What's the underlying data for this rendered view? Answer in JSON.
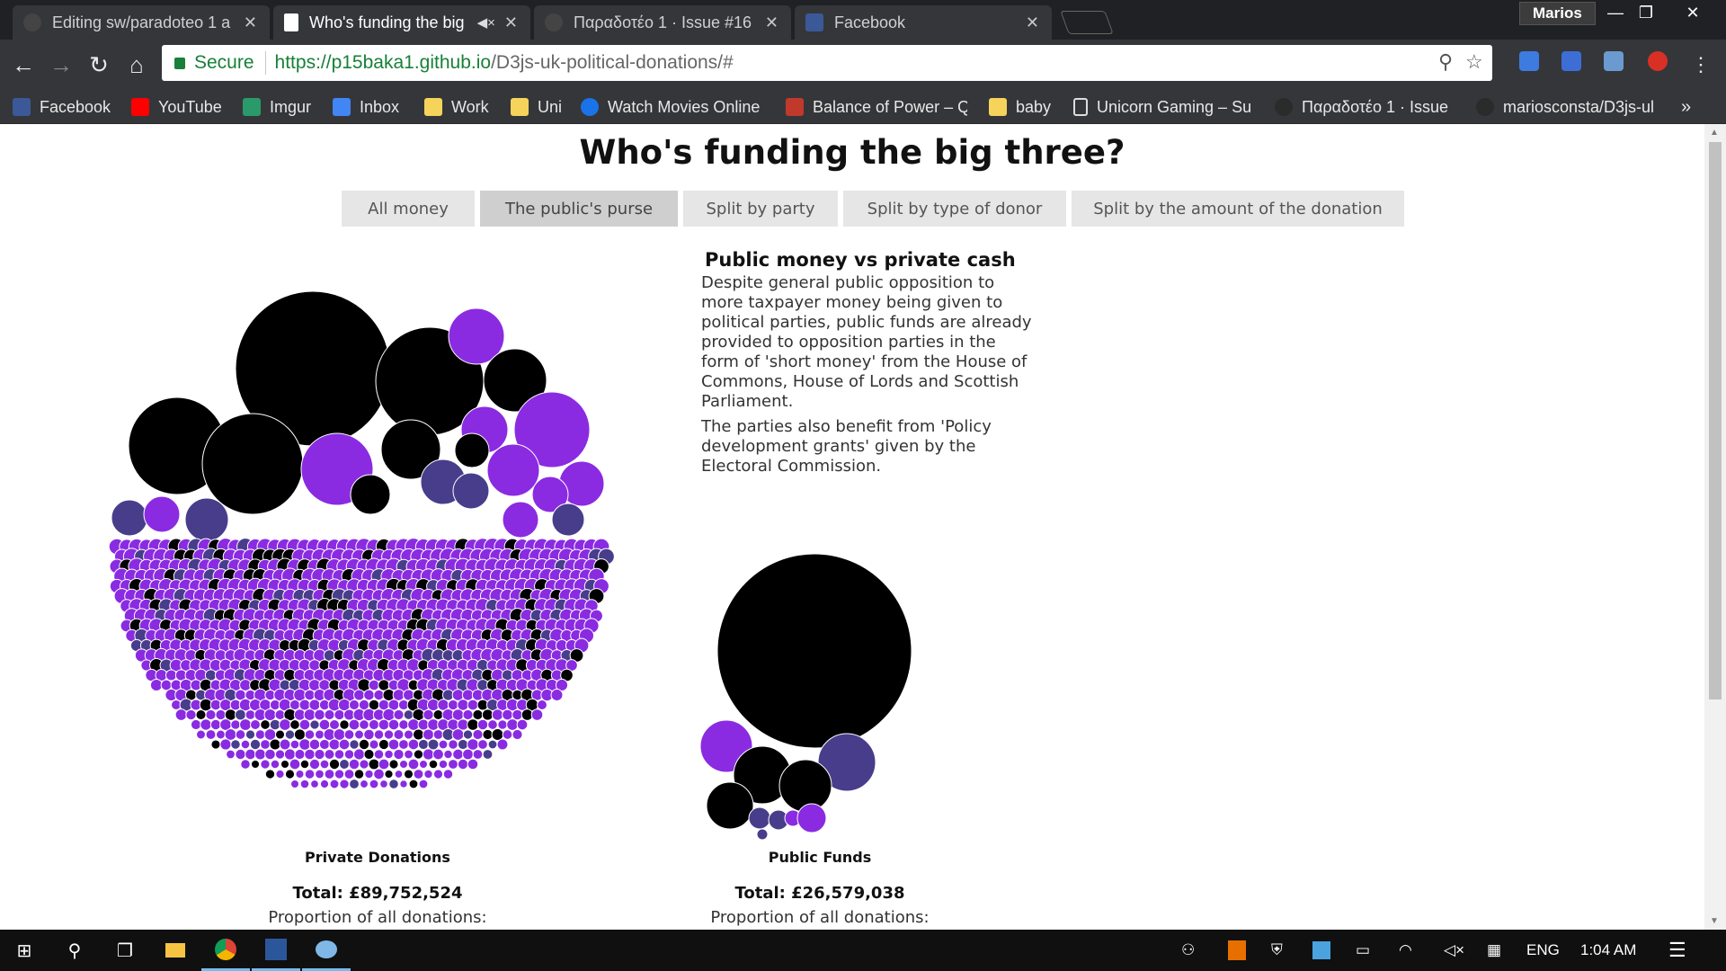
{
  "window": {
    "tabs": [
      {
        "title": "Editing sw/paradoteo 1 a",
        "icon": "github-icon",
        "active": false
      },
      {
        "title": "Who's funding the big",
        "icon": "document-icon",
        "active": true
      },
      {
        "title": "Παραδοτέο 1 · Issue #16",
        "icon": "github-icon",
        "active": false
      },
      {
        "title": "Facebook",
        "icon": "facebook-icon",
        "active": false
      }
    ],
    "user_name": "Marios"
  },
  "toolbar": {
    "secure_label": "Secure",
    "url_host": "https://p15baka1.github.io",
    "url_path": "/D3js-uk-political-donations/#"
  },
  "bookmarks": [
    {
      "label": "Facebook",
      "color": "#3b5998"
    },
    {
      "label": "YouTube",
      "color": "#ff0000"
    },
    {
      "label": "Imgur",
      "color": "#2a9a6a"
    },
    {
      "label": "Inbox",
      "color": "#4285f4"
    },
    {
      "label": "Work",
      "color": "#f6d35b"
    },
    {
      "label": "Uni",
      "color": "#f6d35b"
    },
    {
      "label": "Watch Movies Online",
      "color": "#1a73e8"
    },
    {
      "label": "Balance of Power – Q",
      "color": "#c0392b"
    },
    {
      "label": "baby",
      "color": "#f6d35b"
    },
    {
      "label": "Unicorn Gaming – Su",
      "color": "#ffffff"
    },
    {
      "label": "Παραδοτέο 1 · Issue",
      "color": "#333333"
    },
    {
      "label": "mariosconsta/D3js-ul",
      "color": "#333333"
    }
  ],
  "page": {
    "title": "Who's funding the big three?",
    "buttons": [
      "All money",
      "The public's purse",
      "Split by party",
      "Split by type of donor",
      "Split by the amount of the donation"
    ],
    "active_button": 1,
    "description": {
      "heading": "Public money vs private cash",
      "paragraphs": [
        "Despite general public opposition to more taxpayer money being given to political parties, public funds are already provided to opposition parties in the form of 'short money' from the House of Commons, House of Lords and Scottish Parliament.",
        "The parties also benefit from 'Policy development grants' given by the Electoral Commission."
      ]
    },
    "groups": [
      {
        "name": "Private Donations",
        "total": "Total: £89,752,524",
        "proportion": "Proportion of all donations:"
      },
      {
        "name": "Public Funds",
        "total": "Total: £26,579,038",
        "proportion": "Proportion of all donations:"
      }
    ],
    "party_colors": {
      "black": "#000000",
      "purple": "#8a2be2",
      "slate": "#483d8b"
    }
  },
  "taskbar": {
    "language": "ENG",
    "time": "1:04 AM"
  }
}
